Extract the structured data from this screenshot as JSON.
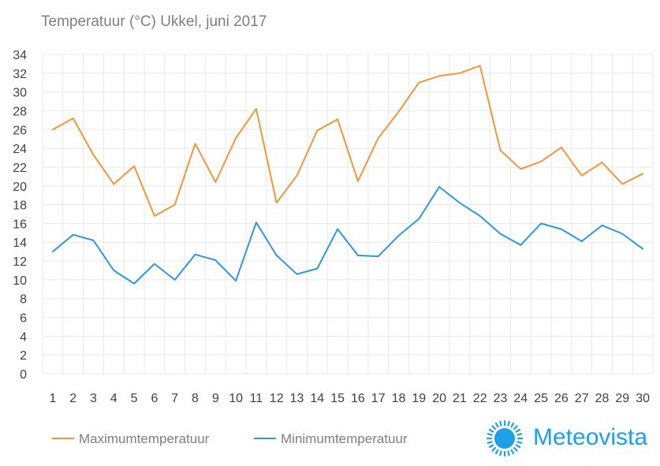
{
  "colors": {
    "max_series": "#F0963C",
    "min_series": "#3296DC",
    "grid": "#e8e8e8",
    "axis_text": "#404040",
    "title_text": "#7f7f7f",
    "brand": "#1EA0E6"
  },
  "brand": {
    "name": "Meteovista",
    "icon": "sun-logo-icon"
  },
  "chart_data": {
    "type": "line",
    "title": "Temperatuur (°C)  Ukkel, juni 2017",
    "xlabel": "",
    "ylabel": "",
    "x": [
      1,
      2,
      3,
      4,
      5,
      6,
      7,
      8,
      9,
      10,
      11,
      12,
      13,
      14,
      15,
      16,
      17,
      18,
      19,
      20,
      21,
      22,
      23,
      24,
      25,
      26,
      27,
      28,
      29,
      30
    ],
    "categories": [
      "1",
      "2",
      "3",
      "4",
      "5",
      "6",
      "7",
      "8",
      "9",
      "10",
      "11",
      "12",
      "13",
      "14",
      "15",
      "16",
      "17",
      "18",
      "19",
      "20",
      "21",
      "22",
      "23",
      "24",
      "25",
      "26",
      "27",
      "28",
      "29",
      "30"
    ],
    "ylim": [
      0,
      34
    ],
    "yticks": [
      "0",
      "2",
      "4",
      "6",
      "8",
      "10",
      "12",
      "14",
      "16",
      "18",
      "20",
      "22",
      "24",
      "26",
      "28",
      "30",
      "32",
      "34"
    ],
    "grid": true,
    "legend_position": "bottom-left",
    "series": [
      {
        "name": "Maximumtemperatuur",
        "values": [
          26.0,
          27.2,
          23.3,
          20.2,
          22.1,
          16.8,
          18.0,
          24.5,
          20.4,
          25.1,
          28.2,
          18.2,
          21.1,
          25.9,
          27.1,
          20.5,
          25.1,
          27.9,
          31.0,
          31.7,
          32.0,
          32.8,
          23.8,
          21.8,
          22.6,
          24.1,
          21.1,
          22.5,
          20.2,
          21.3
        ]
      },
      {
        "name": "Minimumtemperatuur",
        "values": [
          13.0,
          14.8,
          14.2,
          11.0,
          9.6,
          11.7,
          10.0,
          12.7,
          12.1,
          9.9,
          16.1,
          12.6,
          10.6,
          11.2,
          15.4,
          12.6,
          12.5,
          14.7,
          16.5,
          19.9,
          18.2,
          16.8,
          14.9,
          13.7,
          16.0,
          15.4,
          14.1,
          15.8,
          14.9,
          13.3
        ]
      }
    ]
  }
}
